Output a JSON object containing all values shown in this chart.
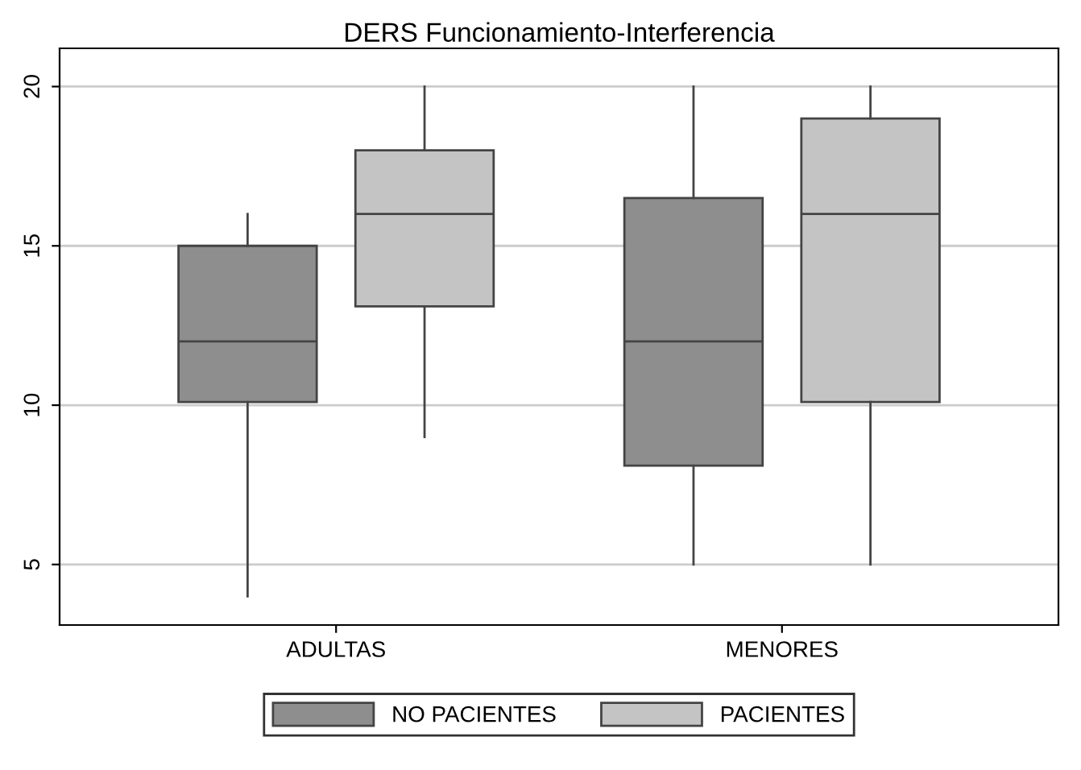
{
  "chart_data": {
    "type": "box",
    "title": "DERS Funcionamiento-Interferencia",
    "categories": [
      "ADULTAS",
      "MENORES"
    ],
    "series": [
      {
        "name": "NO PACIENTES",
        "color": "#8e8e8e",
        "boxes": [
          {
            "low": 4,
            "q1": 10.1,
            "median": 12,
            "q3": 15,
            "high": 16
          },
          {
            "low": 5,
            "q1": 8.1,
            "median": 12,
            "q3": 16.5,
            "high": 20
          }
        ]
      },
      {
        "name": "PACIENTES",
        "color": "#c4c4c4",
        "boxes": [
          {
            "low": 9,
            "q1": 13.1,
            "median": 16,
            "q3": 18,
            "high": 20
          },
          {
            "low": 5,
            "q1": 10.1,
            "median": 16,
            "q3": 19,
            "high": 20
          }
        ]
      }
    ],
    "ylim": [
      3.1,
      21.2
    ],
    "yticks": [
      5,
      10,
      15,
      20
    ],
    "grid": "y",
    "legend": "bottom"
  }
}
